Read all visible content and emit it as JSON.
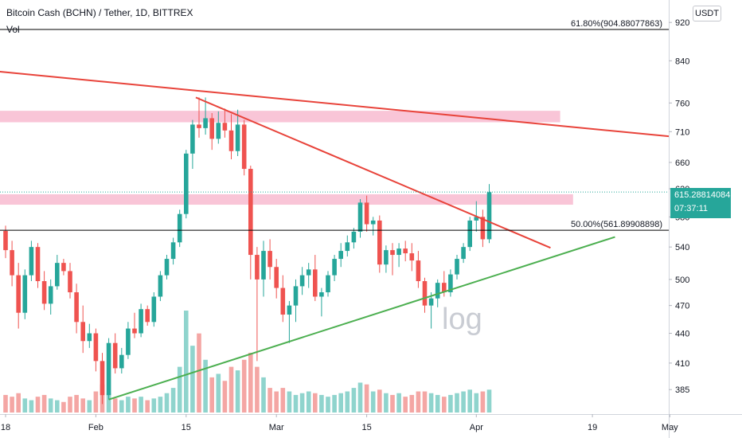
{
  "header": {
    "title": "Bitcoin Cash (BCHN) / Tether, 1D, BITTREX",
    "volume_label": "Vol"
  },
  "currency": "USDT",
  "current_price": {
    "value": "615.28814084",
    "countdown": "07:37:11",
    "price": 615.29,
    "color": "#26a69a"
  },
  "watermark": "log",
  "chart_data": {
    "type": "candlestick",
    "scale": "log",
    "ylim": [
      366,
      945
    ],
    "y_ticks": [
      385,
      410,
      440,
      470,
      500,
      540,
      580,
      620,
      660,
      710,
      760,
      840,
      920
    ],
    "x_ticks": [
      {
        "day": 0,
        "label": "18"
      },
      {
        "day": 14,
        "label": "Feb"
      },
      {
        "day": 28,
        "label": "15"
      },
      {
        "day": 42,
        "label": "Mar"
      },
      {
        "day": 56,
        "label": "15"
      },
      {
        "day": 73,
        "label": "Apr"
      },
      {
        "day": 91,
        "label": "19"
      },
      {
        "day": 103,
        "label": "May"
      }
    ],
    "colors": {
      "up": "#26a69a",
      "down": "#ef5350",
      "vol_up": "#8fd4cd",
      "vol_down": "#f4a6a4"
    },
    "candles": [
      [
        561,
        568,
        526,
        536
      ],
      [
        536,
        548,
        492,
        505
      ],
      [
        505,
        520,
        445,
        462
      ],
      [
        462,
        512,
        455,
        505
      ],
      [
        505,
        548,
        498,
        540
      ],
      [
        540,
        545,
        490,
        498
      ],
      [
        498,
        510,
        465,
        472
      ],
      [
        472,
        500,
        460,
        492
      ],
      [
        492,
        530,
        488,
        520
      ],
      [
        520,
        525,
        505,
        510
      ],
      [
        510,
        520,
        478,
        485
      ],
      [
        485,
        495,
        440,
        452
      ],
      [
        452,
        470,
        420,
        432
      ],
      [
        432,
        450,
        425,
        440
      ],
      [
        440,
        445,
        402,
        412
      ],
      [
        412,
        420,
        372,
        380
      ],
      [
        380,
        435,
        376,
        430
      ],
      [
        430,
        440,
        400,
        405
      ],
      [
        405,
        425,
        400,
        418
      ],
      [
        418,
        452,
        414,
        445
      ],
      [
        445,
        462,
        435,
        440
      ],
      [
        440,
        472,
        436,
        466
      ],
      [
        466,
        470,
        448,
        452
      ],
      [
        452,
        485,
        447,
        480
      ],
      [
        480,
        510,
        475,
        505
      ],
      [
        505,
        530,
        500,
        525
      ],
      [
        525,
        552,
        518,
        546
      ],
      [
        546,
        590,
        540,
        584
      ],
      [
        584,
        680,
        578,
        674
      ],
      [
        674,
        730,
        650,
        722
      ],
      [
        722,
        770,
        700,
        716
      ],
      [
        716,
        770,
        705,
        733
      ],
      [
        733,
        742,
        680,
        698
      ],
      [
        698,
        745,
        690,
        725
      ],
      [
        725,
        750,
        700,
        712
      ],
      [
        712,
        740,
        665,
        678
      ],
      [
        678,
        748,
        670,
        722
      ],
      [
        722,
        730,
        640,
        650
      ],
      [
        650,
        655,
        500,
        530
      ],
      [
        530,
        540,
        412,
        500
      ],
      [
        500,
        548,
        480,
        535
      ],
      [
        535,
        550,
        500,
        515
      ],
      [
        515,
        525,
        478,
        490
      ],
      [
        490,
        505,
        452,
        460
      ],
      [
        460,
        475,
        430,
        470
      ],
      [
        470,
        500,
        452,
        492
      ],
      [
        492,
        515,
        482,
        505
      ],
      [
        505,
        520,
        490,
        512
      ],
      [
        512,
        530,
        475,
        480
      ],
      [
        480,
        490,
        458,
        485
      ],
      [
        485,
        510,
        480,
        505
      ],
      [
        505,
        530,
        498,
        525
      ],
      [
        525,
        545,
        515,
        535
      ],
      [
        535,
        555,
        528,
        546
      ],
      [
        546,
        565,
        538,
        560
      ],
      [
        560,
        605,
        552,
        600
      ],
      [
        600,
        610,
        560,
        570
      ],
      [
        570,
        580,
        555,
        575
      ],
      [
        575,
        582,
        508,
        518
      ],
      [
        518,
        542,
        508,
        536
      ],
      [
        536,
        545,
        505,
        530
      ],
      [
        530,
        545,
        515,
        538
      ],
      [
        538,
        548,
        522,
        532
      ],
      [
        532,
        545,
        510,
        523
      ],
      [
        523,
        535,
        490,
        498
      ],
      [
        498,
        502,
        462,
        470
      ],
      [
        470,
        485,
        445,
        478
      ],
      [
        478,
        500,
        468,
        496
      ],
      [
        496,
        510,
        480,
        485
      ],
      [
        485,
        512,
        480,
        506
      ],
      [
        506,
        530,
        500,
        525
      ],
      [
        525,
        545,
        520,
        540
      ],
      [
        540,
        580,
        535,
        575
      ],
      [
        575,
        602,
        560,
        580
      ],
      [
        580,
        590,
        540,
        550
      ],
      [
        550,
        627,
        545,
        615
      ]
    ],
    "volume": [
      10,
      9,
      11,
      8,
      7,
      9,
      10,
      8,
      7,
      6,
      9,
      10,
      8,
      7,
      12,
      16,
      11,
      8,
      7,
      9,
      8,
      9,
      7,
      8,
      9,
      11,
      14,
      26,
      58,
      38,
      45,
      30,
      20,
      22,
      18,
      26,
      24,
      30,
      34,
      26,
      20,
      14,
      12,
      14,
      12,
      10,
      11,
      12,
      11,
      10,
      9,
      10,
      11,
      12,
      14,
      17,
      16,
      12,
      13,
      11,
      10,
      11,
      9,
      10,
      12,
      12,
      11,
      10,
      9,
      10,
      11,
      12,
      13,
      11,
      12,
      13
    ],
    "levels": [
      {
        "label": "61.80%(904.88077863)",
        "price": 904.88,
        "color": "#000000"
      },
      {
        "label": "50.00%(561.89908898)",
        "price": 561.9,
        "color": "#000000"
      }
    ],
    "zones": [
      {
        "day_from": -1.5,
        "day_to": 86,
        "price_from": 726,
        "price_to": 746,
        "color": "#f8bbd0"
      },
      {
        "day_from": -2,
        "day_to": 88,
        "price_from": 597,
        "price_to": 612,
        "color": "#f8bbd0"
      }
    ],
    "trendlines": [
      {
        "from": [
          -2,
          820
        ],
        "to": [
          105,
          700
        ],
        "color": "#e8433a"
      },
      {
        "from": [
          29.5,
          770
        ],
        "to": [
          84.5,
          539
        ],
        "color": "#e8433a"
      },
      {
        "from": [
          16,
          376
        ],
        "to": [
          94.5,
          553
        ],
        "color": "#4caf50"
      }
    ]
  }
}
